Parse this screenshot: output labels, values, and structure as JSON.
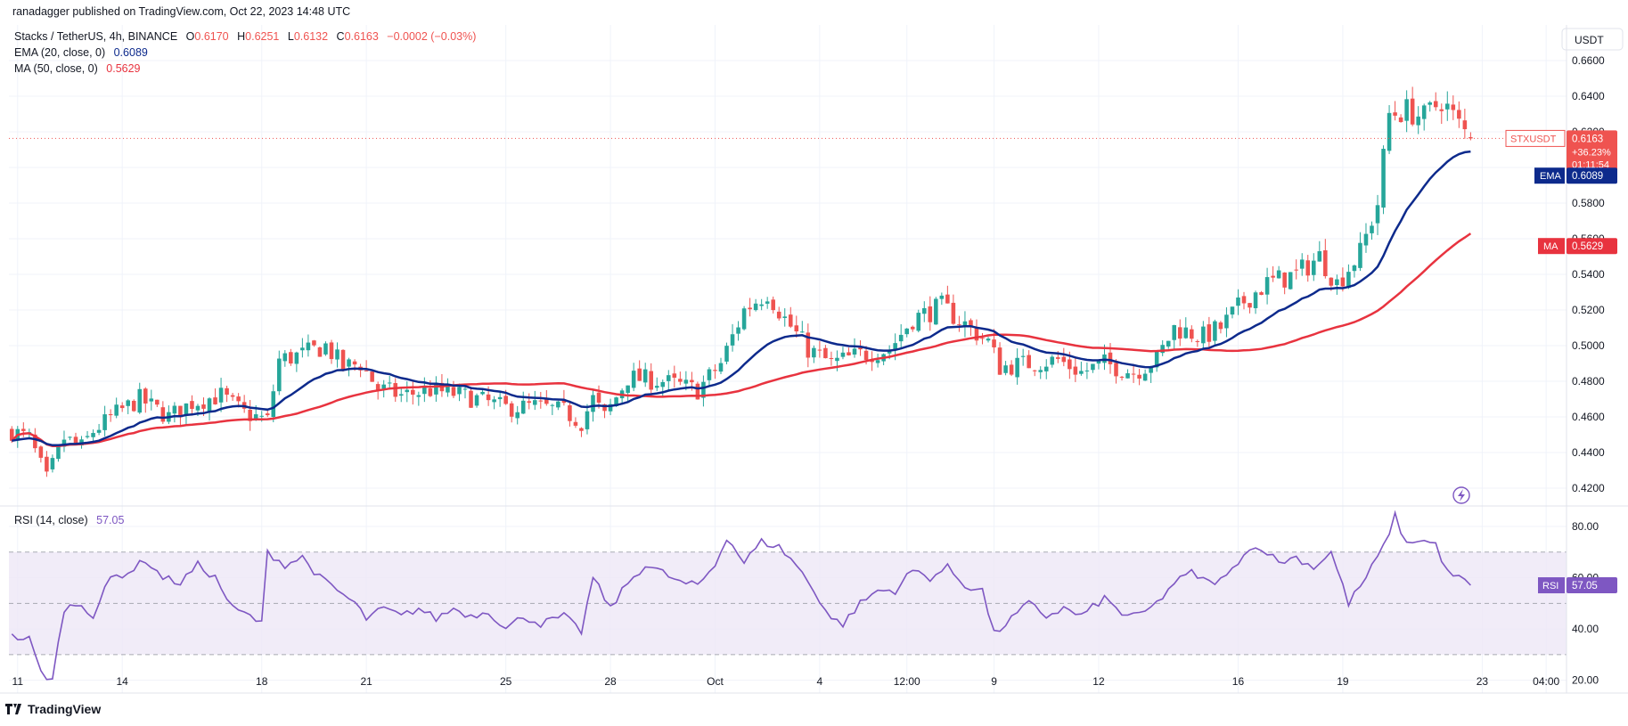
{
  "header": {
    "publisher": "ranadagger published on TradingView.com, Oct 22, 2023 14:48 UTC",
    "symbol_title": "Stacks / TetherUS, 4h, BINANCE",
    "ohlc": {
      "o_label": "O",
      "o": "0.6170",
      "h_label": "H",
      "h": "0.6251",
      "l_label": "L",
      "l": "0.6132",
      "c_label": "C",
      "c": "0.6163",
      "change": "−0.0002 (−0.03%)"
    },
    "ema_label": "EMA (20, close, 0)",
    "ema_value": "0.6089",
    "ma_label": "MA (50, close, 0)",
    "ma_value": "0.5629",
    "rsi_label": "RSI (14, close)",
    "rsi_value": "57.05"
  },
  "currency": "USDT",
  "badges": {
    "symbol": "STXUSDT",
    "price": "0.6163",
    "change_pct": "+36.23%",
    "countdown": "01:11:54",
    "ema_name": "EMA",
    "ema": "0.6089",
    "ma_name": "MA",
    "ma": "0.5629",
    "rsi_name": "RSI",
    "rsi": "57.05"
  },
  "watermark": "TradingView",
  "colors": {
    "up": "#26a69a",
    "down": "#ef5350",
    "ema": "#0d2a8c",
    "ma": "#e8333f",
    "rsi": "#7e57c2",
    "rsi_band": "#ede7f6",
    "grid": "#f0f3fa",
    "text": "#131722",
    "price_line": "#ef5350"
  },
  "chart_data": [
    {
      "type": "candlestick",
      "title": "Stacks / TetherUS, 4h, BINANCE",
      "ylim": [
        0.41,
        0.68
      ],
      "y_ticks": [
        "0.4200",
        "0.4400",
        "0.4600",
        "0.4800",
        "0.5000",
        "0.5200",
        "0.5400",
        "0.5600",
        "0.5800",
        "0.6000",
        "0.6200",
        "0.6400",
        "0.6600"
      ],
      "x_ticks": [
        {
          "label": "11",
          "index": 1
        },
        {
          "label": "14",
          "index": 19
        },
        {
          "label": "18",
          "index": 43
        },
        {
          "label": "21",
          "index": 61
        },
        {
          "label": "25",
          "index": 85
        },
        {
          "label": "28",
          "index": 103
        },
        {
          "label": "Oct",
          "index": 121
        },
        {
          "label": "4",
          "index": 139
        },
        {
          "label": "12:00",
          "index": 154
        },
        {
          "label": "9",
          "index": 169
        },
        {
          "label": "12",
          "index": 187
        },
        {
          "label": "16",
          "index": 211
        },
        {
          "label": "19",
          "index": 229
        },
        {
          "label": "23",
          "index": 253
        },
        {
          "label": "04:00",
          "index": 264
        }
      ],
      "anchors": [
        [
          0,
          0.452
        ],
        [
          3,
          0.448
        ],
        [
          6,
          0.425
        ],
        [
          9,
          0.448
        ],
        [
          12,
          0.443
        ],
        [
          14,
          0.452
        ],
        [
          18,
          0.462
        ],
        [
          22,
          0.47
        ],
        [
          27,
          0.46
        ],
        [
          31,
          0.468
        ],
        [
          36,
          0.472
        ],
        [
          40,
          0.462
        ],
        [
          44,
          0.458
        ],
        [
          46,
          0.492
        ],
        [
          50,
          0.495
        ],
        [
          54,
          0.5
        ],
        [
          57,
          0.488
        ],
        [
          60,
          0.49
        ],
        [
          63,
          0.476
        ],
        [
          67,
          0.472
        ],
        [
          72,
          0.475
        ],
        [
          76,
          0.473
        ],
        [
          80,
          0.47
        ],
        [
          85,
          0.465
        ],
        [
          90,
          0.466
        ],
        [
          95,
          0.463
        ],
        [
          98,
          0.457
        ],
        [
          100,
          0.47
        ],
        [
          102,
          0.46
        ],
        [
          106,
          0.482
        ],
        [
          112,
          0.48
        ],
        [
          118,
          0.475
        ],
        [
          122,
          0.49
        ],
        [
          126,
          0.52
        ],
        [
          130,
          0.53
        ],
        [
          133,
          0.515
        ],
        [
          137,
          0.498
        ],
        [
          141,
          0.49
        ],
        [
          146,
          0.495
        ],
        [
          151,
          0.498
        ],
        [
          155,
          0.515
        ],
        [
          160,
          0.522
        ],
        [
          164,
          0.512
        ],
        [
          168,
          0.502
        ],
        [
          170,
          0.488
        ],
        [
          175,
          0.49
        ],
        [
          180,
          0.492
        ],
        [
          184,
          0.485
        ],
        [
          188,
          0.49
        ],
        [
          193,
          0.485
        ],
        [
          197,
          0.492
        ],
        [
          200,
          0.51
        ],
        [
          205,
          0.505
        ],
        [
          208,
          0.51
        ],
        [
          212,
          0.525
        ],
        [
          216,
          0.535
        ],
        [
          221,
          0.54
        ],
        [
          225,
          0.55
        ],
        [
          228,
          0.535
        ],
        [
          232,
          0.552
        ],
        [
          235,
          0.58
        ],
        [
          237,
          0.63
        ],
        [
          240,
          0.632
        ],
        [
          243,
          0.628
        ],
        [
          246,
          0.638
        ],
        [
          249,
          0.624
        ],
        [
          251,
          0.6163
        ]
      ],
      "ema": {
        "name": "EMA (20, close, 0)",
        "last": 0.6089
      },
      "ma": {
        "name": "MA (50, close, 0)",
        "last": 0.5629
      },
      "last_price": 0.6163
    },
    {
      "type": "line",
      "title": "RSI (14, close)",
      "ylim": [
        15,
        88
      ],
      "y_ticks": [
        "20.00",
        "40.00",
        "60.00",
        "80.00"
      ],
      "band": [
        30,
        70
      ],
      "midline": 50,
      "last": 57.05,
      "anchors": [
        [
          0,
          37
        ],
        [
          3,
          36
        ],
        [
          5,
          23
        ],
        [
          7,
          20
        ],
        [
          9,
          48
        ],
        [
          12,
          50
        ],
        [
          14,
          45
        ],
        [
          17,
          60
        ],
        [
          20,
          62
        ],
        [
          23,
          67
        ],
        [
          26,
          60
        ],
        [
          29,
          58
        ],
        [
          32,
          65
        ],
        [
          35,
          60
        ],
        [
          38,
          48
        ],
        [
          41,
          45
        ],
        [
          43,
          42
        ],
        [
          44,
          70
        ],
        [
          47,
          65
        ],
        [
          50,
          68
        ],
        [
          53,
          60
        ],
        [
          56,
          55
        ],
        [
          59,
          50
        ],
        [
          61,
          44
        ],
        [
          64,
          48
        ],
        [
          67,
          45
        ],
        [
          70,
          48
        ],
        [
          73,
          44
        ],
        [
          76,
          48
        ],
        [
          79,
          45
        ],
        [
          82,
          47
        ],
        [
          85,
          40
        ],
        [
          88,
          45
        ],
        [
          91,
          42
        ],
        [
          95,
          45
        ],
        [
          98,
          39
        ],
        [
          100,
          60
        ],
        [
          103,
          48
        ],
        [
          106,
          58
        ],
        [
          109,
          65
        ],
        [
          112,
          62
        ],
        [
          115,
          58
        ],
        [
          118,
          57
        ],
        [
          121,
          65
        ],
        [
          123,
          76
        ],
        [
          126,
          66
        ],
        [
          129,
          74
        ],
        [
          132,
          72
        ],
        [
          135,
          65
        ],
        [
          138,
          55
        ],
        [
          141,
          44
        ],
        [
          143,
          42
        ],
        [
          146,
          50
        ],
        [
          149,
          55
        ],
        [
          152,
          55
        ],
        [
          155,
          63
        ],
        [
          158,
          60
        ],
        [
          161,
          64
        ],
        [
          164,
          57
        ],
        [
          167,
          55
        ],
        [
          169,
          38
        ],
        [
          172,
          44
        ],
        [
          175,
          50
        ],
        [
          178,
          45
        ],
        [
          181,
          48
        ],
        [
          184,
          45
        ],
        [
          188,
          52
        ],
        [
          191,
          46
        ],
        [
          194,
          45
        ],
        [
          197,
          50
        ],
        [
          200,
          58
        ],
        [
          203,
          62
        ],
        [
          206,
          58
        ],
        [
          209,
          60
        ],
        [
          212,
          70
        ],
        [
          215,
          72
        ],
        [
          218,
          66
        ],
        [
          221,
          68
        ],
        [
          224,
          64
        ],
        [
          227,
          70
        ],
        [
          230,
          50
        ],
        [
          233,
          60
        ],
        [
          236,
          72
        ],
        [
          238,
          84
        ],
        [
          240,
          73
        ],
        [
          242,
          75
        ],
        [
          245,
          73
        ],
        [
          247,
          62
        ],
        [
          249,
          60
        ],
        [
          251,
          57.05
        ]
      ]
    }
  ]
}
